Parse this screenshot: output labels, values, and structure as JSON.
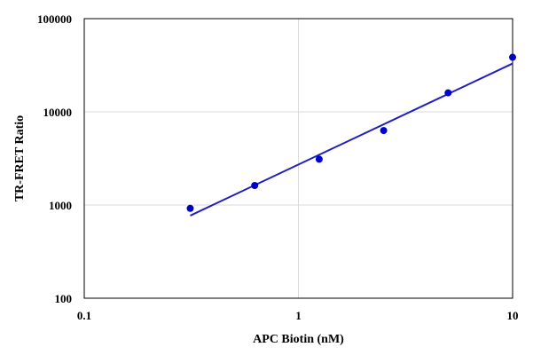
{
  "chart_data": {
    "type": "scatter",
    "title": "",
    "xlabel": "APC Biotin (nM)",
    "ylabel": "TR-FRET Ratio",
    "xscale": "log",
    "yscale": "log",
    "xlim": [
      0.1,
      10
    ],
    "ylim": [
      100,
      100000
    ],
    "x_ticks": [
      0.1,
      1,
      10
    ],
    "x_tick_labels": [
      "0.1",
      "1",
      "10"
    ],
    "y_ticks": [
      100,
      1000,
      10000,
      100000
    ],
    "y_tick_labels": [
      "100",
      "1000",
      "10000",
      "100000"
    ],
    "grid": true,
    "legend": "none",
    "series": [
      {
        "type": "scatter",
        "color": "#0000cc",
        "x": [
          0.3125,
          0.625,
          1.25,
          2.5,
          5,
          10
        ],
        "y": [
          920,
          1620,
          3100,
          6300,
          16000,
          38500
        ]
      }
    ],
    "trendline": {
      "type": "line",
      "color": "#1f1fbf",
      "x": [
        0.3125,
        10
      ],
      "y": [
        770,
        33000
      ]
    }
  }
}
